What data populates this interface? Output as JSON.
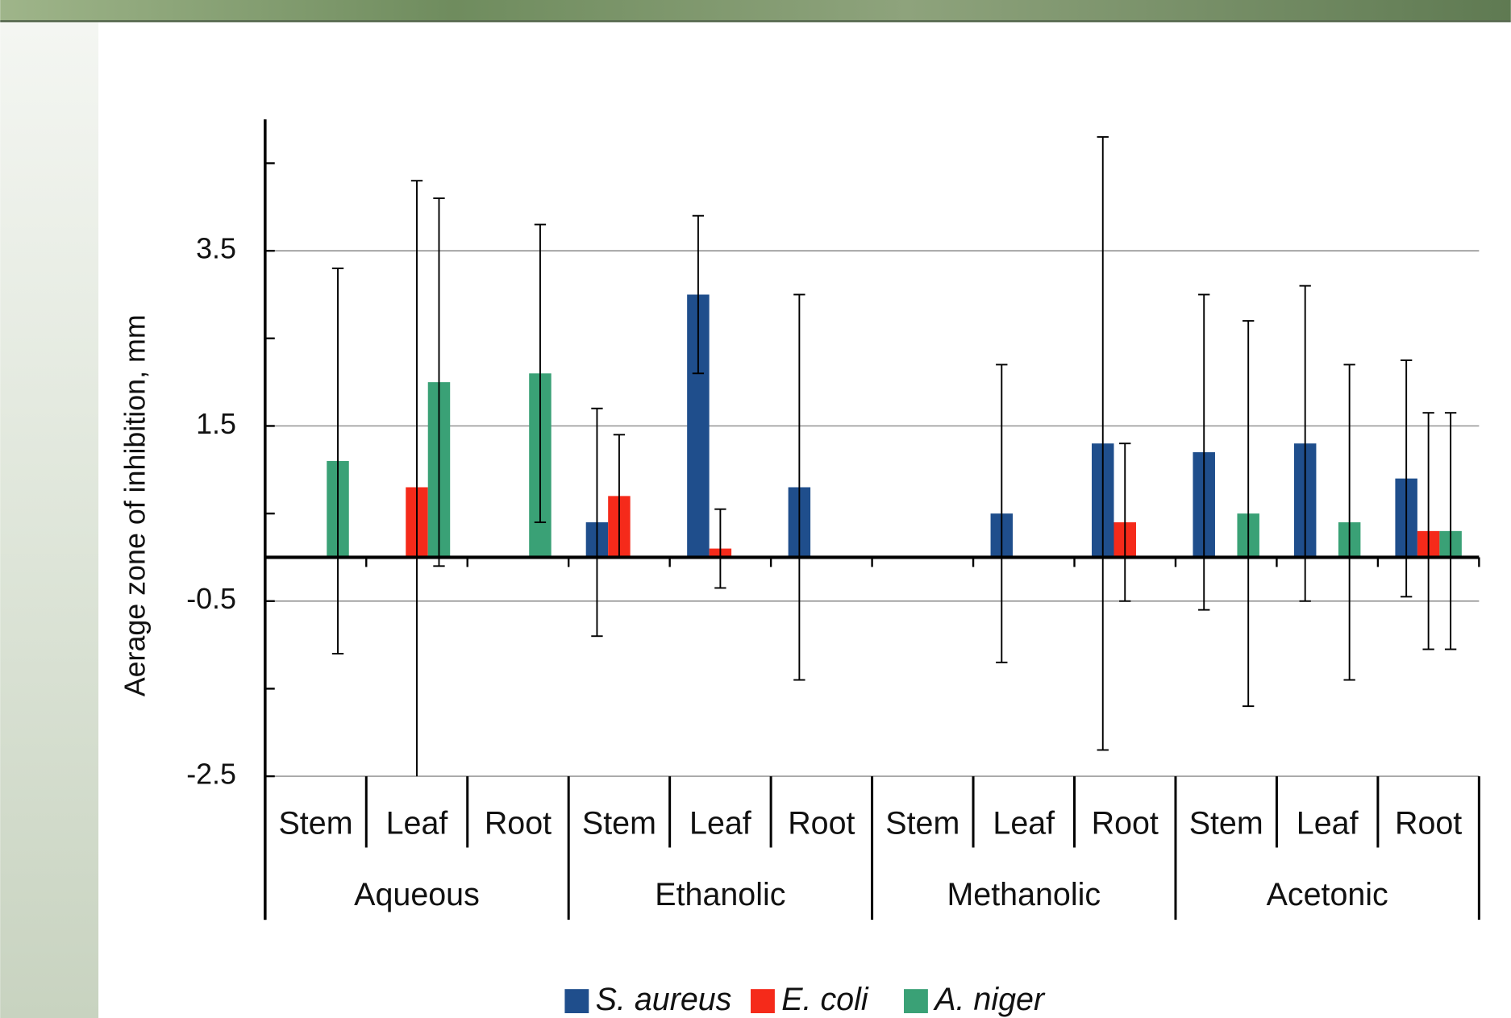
{
  "chart_data": {
    "type": "bar",
    "y_label": "Aerage zone of inhibition, mm",
    "categories": [
      "Stem",
      "Leaf",
      "Root",
      "Stem",
      "Leaf",
      "Root",
      "Stem",
      "Leaf",
      "Root",
      "Stem",
      "Leaf",
      "Root"
    ],
    "groups": [
      "Aqueous",
      "Ethanolic",
      "Methanolic",
      "Acetonic"
    ],
    "series": [
      {
        "name": "S. aureus",
        "color": "#1f4e8c",
        "values": [
          null,
          null,
          null,
          0.4,
          3.0,
          0.8,
          null,
          0.5,
          1.3,
          1.2,
          1.3,
          0.9
        ],
        "errors": [
          null,
          null,
          null,
          1.3,
          0.9,
          2.2,
          null,
          1.7,
          3.5,
          1.8,
          1.8,
          1.35
        ]
      },
      {
        "name": "E. coli",
        "color": "#f52a1a",
        "values": [
          null,
          0.8,
          null,
          0.7,
          0.1,
          null,
          null,
          null,
          0.4,
          null,
          null,
          0.3
        ],
        "errors": [
          null,
          3.5,
          null,
          0.7,
          0.45,
          null,
          null,
          null,
          0.9,
          null,
          null,
          1.35
        ]
      },
      {
        "name": "A. niger",
        "color": "#3aa176",
        "values": [
          1.1,
          2.0,
          2.1,
          null,
          null,
          null,
          null,
          null,
          null,
          0.5,
          0.4,
          0.3
        ],
        "errors": [
          2.2,
          2.1,
          1.7,
          null,
          null,
          null,
          null,
          null,
          null,
          2.2,
          1.8,
          1.35
        ]
      }
    ],
    "ylim": [
      -2.5,
      5
    ],
    "yticks": [
      -2.5,
      -0.5,
      1.5,
      3.5
    ],
    "yminorticks": [
      -1.5,
      0.5,
      2.5,
      4.5
    ],
    "grid": true,
    "legend": "bottom"
  }
}
